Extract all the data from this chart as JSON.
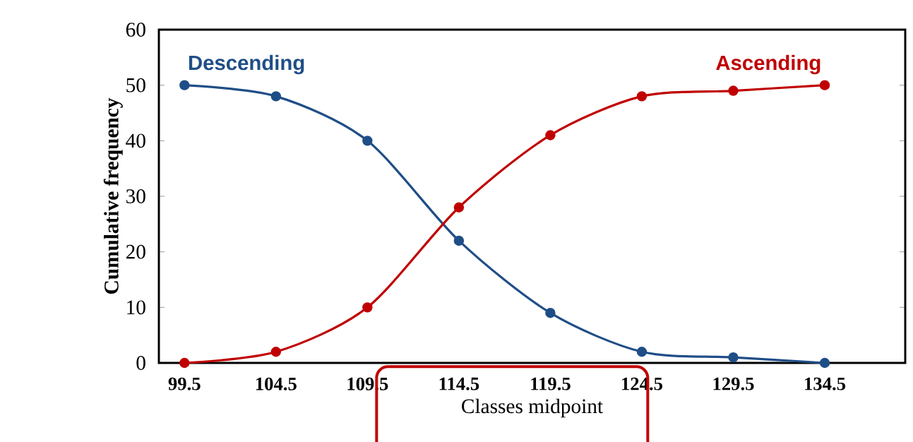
{
  "chart_data": {
    "type": "line",
    "xlabel": "Classes midpoint",
    "ylabel": "Cumulative  frequency",
    "x": [
      99.5,
      104.5,
      109.5,
      114.5,
      119.5,
      124.5,
      129.5,
      134.5
    ],
    "series": [
      {
        "name": "Descending",
        "color": "#1f4e87",
        "values": [
          50,
          48,
          40,
          22,
          9,
          2,
          1,
          0
        ]
      },
      {
        "name": "Ascending",
        "color": "#c00000",
        "values": [
          0,
          2,
          10,
          28,
          41,
          48,
          49,
          50
        ]
      }
    ],
    "xlim": [
      98.1,
      138.9
    ],
    "ylim": [
      0,
      60
    ],
    "xticks": [
      99.5,
      104.5,
      109.5,
      114.5,
      119.5,
      124.5,
      129.5,
      134.5
    ],
    "yticks": [
      0,
      10,
      20,
      30,
      40,
      50,
      60
    ],
    "marker": "circle",
    "line_style": "solid",
    "grid": false,
    "legend": false
  }
}
